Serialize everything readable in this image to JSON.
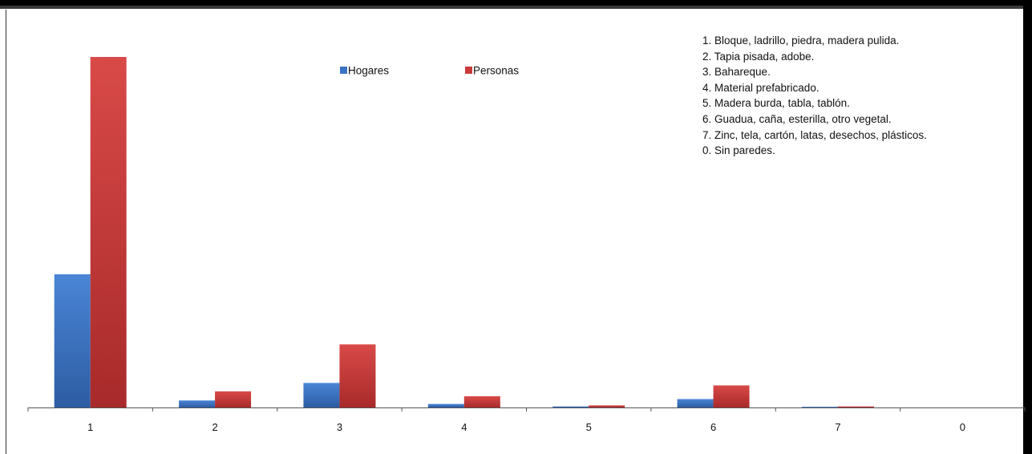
{
  "chart_data": {
    "type": "bar",
    "categories": [
      "1",
      "2",
      "3",
      "4",
      "5",
      "6",
      "7",
      "0"
    ],
    "series": [
      {
        "name": "Hogares",
        "color": "#3b73c4",
        "values": [
          38,
          2,
          7,
          1,
          0.3,
          2.4,
          0.2,
          0
        ]
      },
      {
        "name": "Personas",
        "color": "#c93a3a",
        "values": [
          100,
          4.6,
          18,
          3.2,
          0.6,
          6.3,
          0.3,
          0
        ]
      }
    ],
    "ylim": [
      0,
      100
    ],
    "y_axis_visible": false,
    "grid": false,
    "legend_placement": "top-center",
    "annotation_lines": [
      "1. Bloque, ladrillo, piedra, madera pulida.",
      "2. Tapia pisada, adobe.",
      "3. Bahareque.",
      "4. Material prefabricado.",
      "5. Madera burda, tabla, tablón.",
      "6. Guadua, caña, esterilla, otro vegetal.",
      "7. Zinc, tela, cartón, latas, desechos, plásticos.",
      "0. Sin paredes."
    ]
  }
}
